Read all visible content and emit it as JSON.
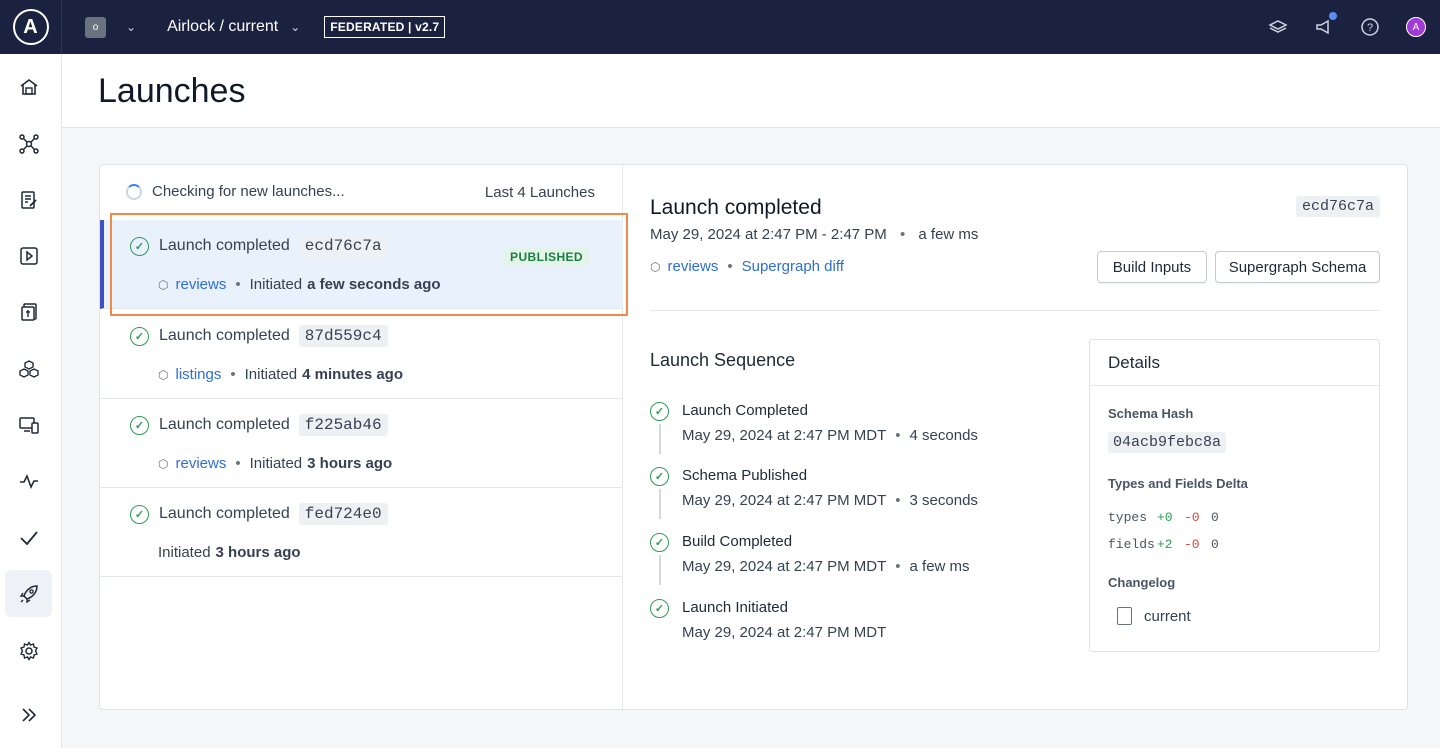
{
  "topbar": {
    "logo_letter": "A",
    "org_initial": "o",
    "graph_name": "Airlock / current",
    "federation_badge": "FEDERATED | v2.7",
    "icons": [
      "learn-icon",
      "announcements-icon",
      "help-icon",
      "avatar"
    ],
    "avatar_initial": "A"
  },
  "sidebar": {
    "items": [
      "home-icon",
      "schema-icon",
      "changelog-icon",
      "explorer-icon",
      "checks-icon",
      "subgraphs-icon",
      "clients-icon",
      "insights-icon",
      "checkmarks-icon",
      "launches-icon",
      "settings-icon",
      "expand-icon"
    ],
    "active": "launches-icon"
  },
  "page": {
    "title": "Launches"
  },
  "launch_list": {
    "status_text": "Checking for new launches...",
    "count_text": "Last 4 Launches",
    "items": [
      {
        "title": "Launch completed",
        "hash": "ecd76c7a",
        "subgraph": "reviews",
        "initiated_prefix": "Initiated",
        "initiated_when": "a few seconds ago",
        "badge": "PUBLISHED"
      },
      {
        "title": "Launch completed",
        "hash": "87d559c4",
        "subgraph": "listings",
        "initiated_prefix": "Initiated",
        "initiated_when": "4 minutes ago"
      },
      {
        "title": "Launch completed",
        "hash": "f225ab46",
        "subgraph": "reviews",
        "initiated_prefix": "Initiated",
        "initiated_when": "3 hours ago"
      },
      {
        "title": "Launch completed",
        "hash": "fed724e0",
        "initiated_prefix": "Initiated",
        "initiated_when": "3 hours ago"
      }
    ]
  },
  "detail": {
    "title": "Launch completed",
    "hash": "ecd76c7a",
    "date_range": "May 29, 2024 at 2:47 PM - 2:47 PM",
    "duration": "a few ms",
    "subgraph": "reviews",
    "diff_link": "Supergraph diff",
    "build_inputs_label": "Build Inputs",
    "supergraph_schema_label": "Supergraph Schema",
    "sequence_title": "Launch Sequence",
    "sequence": [
      {
        "name": "Launch Completed",
        "time": "May 29, 2024 at 2:47 PM MDT",
        "duration": "4 seconds"
      },
      {
        "name": "Schema Published",
        "time": "May 29, 2024 at 2:47 PM MDT",
        "duration": "3 seconds"
      },
      {
        "name": "Build Completed",
        "time": "May 29, 2024 at 2:47 PM MDT",
        "duration": "a few ms"
      },
      {
        "name": "Launch Initiated",
        "time": "May 29, 2024 at 2:47 PM MDT",
        "duration": ""
      }
    ],
    "details_panel": {
      "title": "Details",
      "schema_hash_label": "Schema Hash",
      "schema_hash": "04acb9febc8a",
      "delta_label": "Types and Fields Delta",
      "types": {
        "label": "types",
        "added": "+0",
        "removed": "-0",
        "changed": "0"
      },
      "fields": {
        "label": "fields",
        "added": "+2",
        "removed": "-0",
        "changed": "0"
      },
      "changelog_label": "Changelog",
      "changelog_item": "current"
    }
  },
  "colors": {
    "topbar_bg": "#1b2240",
    "success": "#2e9a56",
    "link": "#2f6fd0",
    "selected_row": "#e9f1fd",
    "selection_outline": "#f08a4b",
    "published_badge": "#1a7f43"
  }
}
